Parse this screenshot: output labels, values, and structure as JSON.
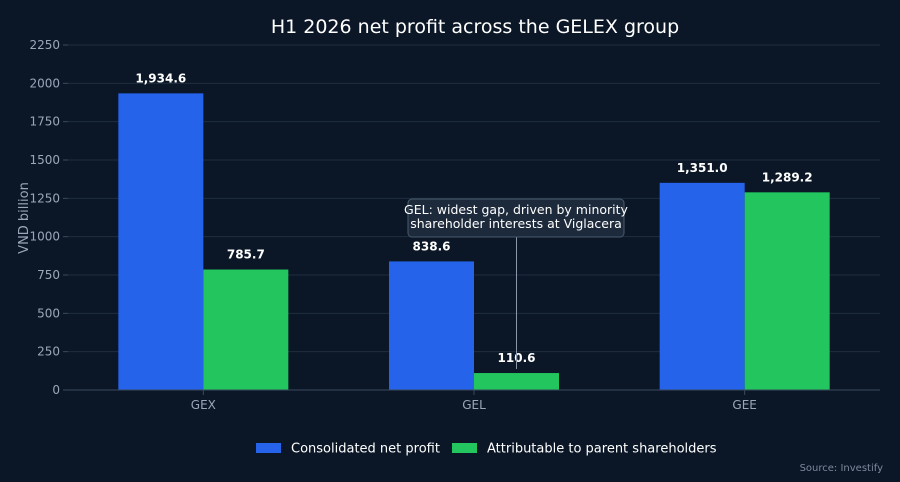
{
  "chart_data": {
    "type": "bar",
    "title": "H1 2026 net profit across the GELEX group",
    "xlabel": "",
    "ylabel": "VND billion",
    "categories": [
      "GEX",
      "GEL",
      "GEE"
    ],
    "series": [
      {
        "name": "Consolidated net profit",
        "color": "#2563eb",
        "values": [
          1934.6,
          838.6,
          1351.0
        ],
        "labels": [
          "1,934.6",
          "838.6",
          "1,351.0"
        ]
      },
      {
        "name": "Attributable to parent shareholders",
        "color": "#22c55e",
        "values": [
          785.7,
          110.6,
          1289.2
        ],
        "labels": [
          "785.7",
          "110.6",
          "1,289.2"
        ]
      }
    ],
    "ylim": [
      0,
      2250
    ],
    "yticks": [
      0,
      250,
      500,
      750,
      1000,
      1250,
      1500,
      1750,
      2000,
      2250
    ],
    "grid": true,
    "legend_position": "bottom",
    "annotation": {
      "lines": [
        "GEL: widest gap, driven by minority",
        "shareholder interests at Viglacera"
      ],
      "category": "GEL",
      "series_index": 1
    },
    "source": "Source: Investify"
  },
  "colors": {
    "background": "#0b1727",
    "grid": "#1f2d40",
    "axis": "#3a4a5e",
    "annotation_fill": "#1c2a3c",
    "annotation_border": "#4a5a6e"
  }
}
